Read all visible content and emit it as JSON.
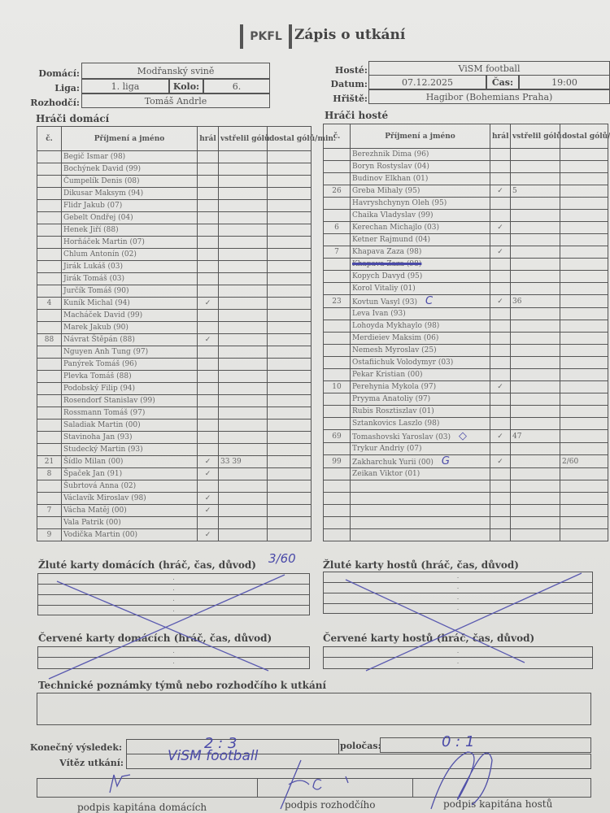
{
  "header": {
    "logo": "PKFL",
    "title": "Zápis o utkání"
  },
  "match": {
    "home_label": "Domácí:",
    "home": "Modřanský svině",
    "league_label": "Liga:",
    "league": "1. liga",
    "round_label": "Kolo:",
    "round": "6.",
    "referee_label": "Rozhodčí:",
    "referee": "Tomáš Andrle",
    "away_label": "Hosté:",
    "away": "ViSM football",
    "date_label": "Datum:",
    "date": "07.12.2025",
    "time_label": "Čas:",
    "time": "19:00",
    "venue_label": "Hřiště:",
    "venue": "Hagibor (Bohemians Praha)"
  },
  "columns": {
    "num": "č.",
    "name": "Příjmení a jméno",
    "played": "hrál",
    "scored": "vstřelil gólů",
    "conceded": "dostal gólů/min."
  },
  "home_players_title": "Hráči domácí",
  "away_players_title": "Hráči hosté",
  "home_players": [
    {
      "name": "Begič Ismar (98)"
    },
    {
      "name": "Bochýnek David (99)"
    },
    {
      "name": "Čumpelík Denis (08)"
    },
    {
      "name": "Dikusar Maksym (94)"
    },
    {
      "name": "Flidr Jakub (07)"
    },
    {
      "name": "Gebelt Ondřej (04)"
    },
    {
      "name": "Henek Jiří (88)"
    },
    {
      "name": "Horňáček Martin (07)"
    },
    {
      "name": "Chlum Antonín (02)"
    },
    {
      "name": "Jirák Lukáš (03)"
    },
    {
      "name": "Jirák Tomáš (03)"
    },
    {
      "name": "Jurčík Tomáš (90)"
    },
    {
      "num": "4",
      "name": "Kuník Michal (94)",
      "played": "✓"
    },
    {
      "name": "Macháček David (99)"
    },
    {
      "name": "Marek Jakub (90)"
    },
    {
      "num": "88",
      "name": "Návrat Štěpán (88)",
      "played": "✓"
    },
    {
      "name": "Nguyen Anh Tung (97)"
    },
    {
      "name": "Panýrek Tomáš (96)"
    },
    {
      "name": "Plevka Tomáš (88)"
    },
    {
      "name": "Podobský Filip (94)"
    },
    {
      "name": "Rosendorf Stanislav (99)"
    },
    {
      "name": "Rossmann Tomáš (97)"
    },
    {
      "name": "Saladiak Martin (00)"
    },
    {
      "name": "Stavinoha Jan (93)"
    },
    {
      "name": "Studecký Martin (93)"
    },
    {
      "num": "21",
      "name": "Šídlo Milan (00)",
      "played": "✓",
      "scored": "33 39"
    },
    {
      "num": "8",
      "name": "Špaček Jan (91)",
      "played": "✓"
    },
    {
      "name": "Šubrtová Anna (02)"
    },
    {
      "name": "Václavík Miroslav (98)",
      "played": "✓"
    },
    {
      "num": "7",
      "name": "Vácha Matěj (00)",
      "played": "✓"
    },
    {
      "name": "Vala Patrik (00)"
    },
    {
      "num": "9",
      "name": "Vodička Martin (00)",
      "played": "✓"
    }
  ],
  "away_players": [
    {
      "name": "Berezhnik Dima (96)"
    },
    {
      "name": "Boryn Rostyslav (04)"
    },
    {
      "name": "Budinov Elkhan (01)"
    },
    {
      "num": "26",
      "name": "Greba Mihaly (95)",
      "played": "✓",
      "scored": "5"
    },
    {
      "name": "Havryshchynyn Oleh (95)"
    },
    {
      "name": "Chaika Vladyslav (99)"
    },
    {
      "num": "6",
      "name": "Kerechan Michajlo (03)",
      "played": "✓"
    },
    {
      "name": "Ketner Rajmund (04)"
    },
    {
      "num": "7",
      "name": "Khapava Zaza (98)",
      "played": "✓"
    },
    {
      "name": "Khapava Zaza (98)",
      "struck": true
    },
    {
      "name": "Kopych Davyd (95)"
    },
    {
      "name": "Korol Vitaliy (01)"
    },
    {
      "num": "23",
      "name": "Kovtun Vasyl (93)",
      "mark": "C",
      "played": "✓",
      "scored": "36"
    },
    {
      "name": "Leva Ivan (93)"
    },
    {
      "name": "Lohoyda Mykhaylo (98)"
    },
    {
      "name": "Merdieiev Maksim (06)"
    },
    {
      "name": "Nemesh Myroslav (25)"
    },
    {
      "name": "Ostafiichuk Volodymyr (03)"
    },
    {
      "name": "Pekar Kristian (00)"
    },
    {
      "num": "10",
      "name": "Perehynia Mykola (97)",
      "played": "✓"
    },
    {
      "name": "Pryyma Anatoliy (97)"
    },
    {
      "name": "Rubis Rosztiszlav (01)"
    },
    {
      "name": "Sztankovics Laszlo (98)"
    },
    {
      "num": "69",
      "name": "Tomashovski Yaroslav (03)",
      "mark": "◇",
      "played": "✓",
      "scored": "47"
    },
    {
      "name": "Trykur Andriy (07)"
    },
    {
      "num": "99",
      "name": "Zakharchuk Yurii (00)",
      "mark": "G",
      "played": "✓",
      "conceded": "2/60"
    },
    {
      "name": "Zeikan Viktor (01)"
    },
    {
      "name": ""
    },
    {
      "name": ""
    },
    {
      "name": ""
    },
    {
      "name": ""
    },
    {
      "name": ""
    }
  ],
  "home_goalie_conceded_note": "3/60",
  "cards": {
    "home_yellow": "Žluté karty domácích (hráč, čas, důvod)",
    "away_yellow": "Žluté karty hostů (hráč, čas, důvod)",
    "home_red": "Červené karty domácích (hráč, čas, důvod)",
    "away_red": "Červené karty hostů (hráč, čas, důvod)",
    "placeholder": "."
  },
  "notes_title": "Technické poznámky týmů nebo rozhodčího k utkání",
  "result": {
    "final_label": "Konečný výsledek:",
    "final": "2 : 3",
    "half_label": "poločas:",
    "half": "0 : 1",
    "winner_label": "Vítěz utkání:",
    "winner": "ViSM football"
  },
  "signatures": {
    "home_captain": "podpis kapitána domácích",
    "referee": "podpis rozhodčího",
    "away_captain": "podpis kapitána hostů"
  },
  "colors": {
    "ink": "#4a4aa8",
    "print": "#555555",
    "paper": "#e6e6e4"
  }
}
